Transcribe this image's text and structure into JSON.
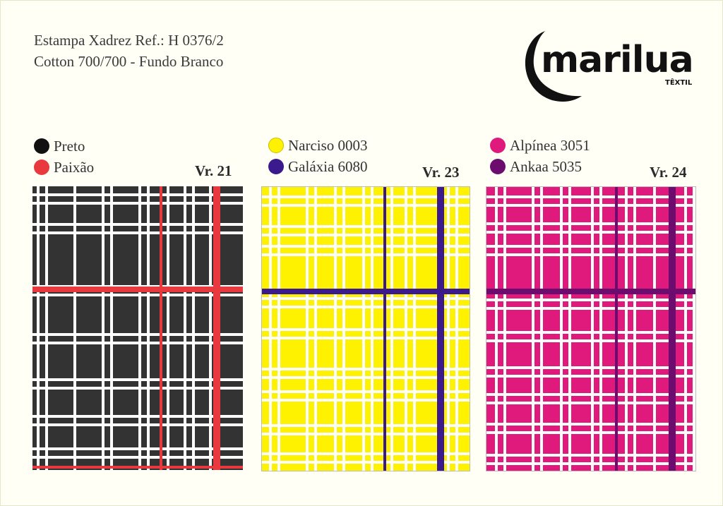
{
  "header": {
    "line1": "Estampa Xadrez Ref.: H 0376/2",
    "line2": "Cotton 700/700 - Fundo Branco"
  },
  "logo": {
    "name": "marilua",
    "sub": "TÊXTIL"
  },
  "variants": [
    {
      "label": "Vr. 21",
      "colors": [
        {
          "name": "Preto",
          "hex": "#111111"
        },
        {
          "name": "Paixão",
          "hex": "#e83a3e"
        }
      ],
      "ground": "#333333",
      "stripe": "#e83a3e"
    },
    {
      "label": "Vr. 23",
      "colors": [
        {
          "name": "Narciso 0003",
          "hex": "#fff200"
        },
        {
          "name": "Galáxia 6080",
          "hex": "#3a1a8c"
        }
      ],
      "ground": "#fff200",
      "stripe": "#3a1a8c"
    },
    {
      "label": "Vr. 24",
      "colors": [
        {
          "name": "Alpínea 3051",
          "hex": "#e0197d"
        },
        {
          "name": "Ankaa 5035",
          "hex": "#6b0c6e"
        }
      ],
      "ground": "#e0197d",
      "stripe": "#6b0c6e"
    }
  ]
}
